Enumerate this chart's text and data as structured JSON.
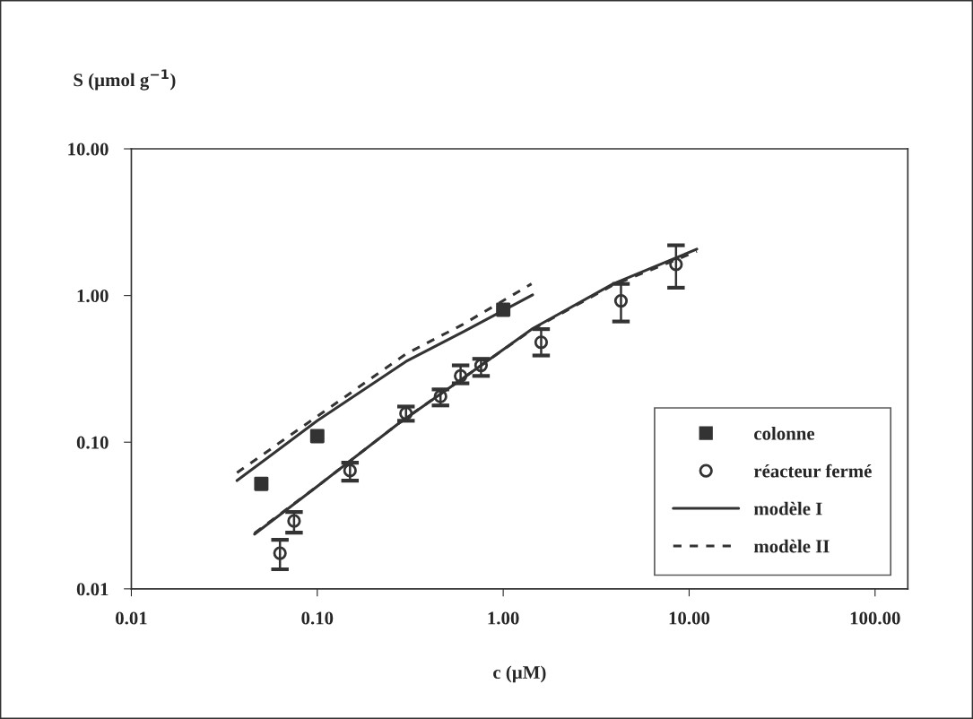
{
  "chart_data": {
    "type": "scatter",
    "xlabel": "c (µM)",
    "ylabel": "S (µmol g$^{−1}$)",
    "log": "xy",
    "xlim": [
      0.01,
      150
    ],
    "ylim": [
      0.01,
      10
    ],
    "xticks": [
      {
        "value": 0.01,
        "label": "0.01"
      },
      {
        "value": 0.1,
        "label": "0.10"
      },
      {
        "value": 1,
        "label": "1.00"
      },
      {
        "value": 10,
        "label": "10.00"
      },
      {
        "value": 100,
        "label": "100.00"
      }
    ],
    "yticks": [
      {
        "value": 0.01,
        "label": "0.01"
      },
      {
        "value": 0.1,
        "label": "0.10"
      },
      {
        "value": 1,
        "label": "1.00"
      },
      {
        "value": 10,
        "label": "10.00"
      }
    ],
    "grid": false,
    "legend": "bottom right",
    "series": [
      {
        "name": "colonne",
        "marker": "square",
        "color": "#333333",
        "x": [
          0.05,
          0.1,
          1.0
        ],
        "values": [
          0.052,
          0.11,
          0.8
        ]
      },
      {
        "name": "réacteur fermé",
        "marker": "circle",
        "color": "#333333",
        "x": [
          0.063,
          0.075,
          0.15,
          0.3,
          0.46,
          0.59,
          0.76,
          1.6,
          4.3,
          8.5
        ],
        "values": [
          0.0175,
          0.029,
          0.064,
          0.157,
          0.205,
          0.283,
          0.334,
          0.48,
          0.92,
          1.63
        ],
        "errors": [
          [
            0.0136,
            0.0216
          ],
          [
            0.0242,
            0.0334
          ],
          [
            0.0547,
            0.0724
          ],
          [
            0.14,
            0.175
          ],
          [
            0.178,
            0.229
          ],
          [
            0.252,
            0.334
          ],
          [
            0.283,
            0.37
          ],
          [
            0.39,
            0.59
          ],
          [
            0.665,
            1.2
          ],
          [
            1.13,
            2.2
          ]
        ]
      },
      {
        "name": "modèle I",
        "type": "line",
        "line_style": "solid",
        "marker": "none",
        "color": "#333333",
        "x": [
          0.046,
          0.1,
          0.273,
          0.6,
          1.44,
          3.9,
          11
        ],
        "values": [
          0.0236,
          0.05,
          0.134,
          0.27,
          0.595,
          1.2,
          2.07
        ]
      },
      {
        "type": "line",
        "line_style": "solid",
        "marker": "none",
        "color": "#333333",
        "x": [
          0.037,
          0.1,
          0.3,
          0.6,
          1.44
        ],
        "values": [
          0.0547,
          0.14,
          0.355,
          0.56,
          1.01
        ]
      },
      {
        "name": "modèle II",
        "type": "line",
        "line_style": "dashed",
        "marker": "none",
        "color": "#333333",
        "x": [
          0.046,
          0.1,
          0.273,
          0.6,
          1.44,
          3.9,
          11
        ],
        "values": [
          0.024,
          0.05,
          0.134,
          0.27,
          0.59,
          1.18,
          2.0
        ]
      },
      {
        "type": "line",
        "line_style": "dashed",
        "marker": "none",
        "color": "#333333",
        "x": [
          0.037,
          0.1,
          0.3,
          0.6,
          1.42
        ],
        "values": [
          0.062,
          0.15,
          0.4,
          0.63,
          1.2
        ]
      }
    ]
  }
}
